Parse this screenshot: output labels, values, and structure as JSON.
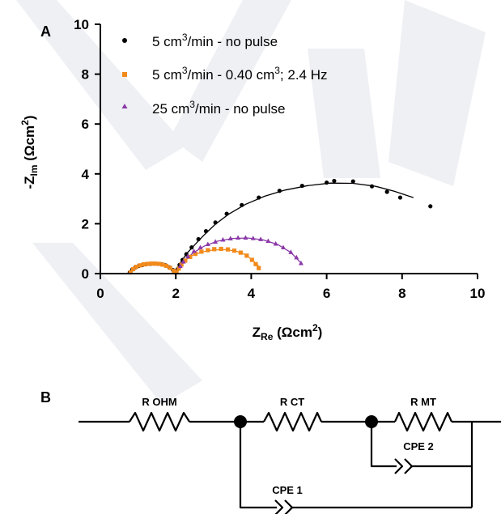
{
  "panels": {
    "a_label": "A",
    "b_label": "B"
  },
  "chart_data": {
    "type": "scatter",
    "xlabel": {
      "main": "Z",
      "sub": "Re",
      "unit": " (Ωcm",
      "sup": "2",
      "close": ")"
    },
    "ylabel": {
      "main": "-Z",
      "sub": "Im",
      "unit": " (Ωcm",
      "sup": "2",
      "close": ")"
    },
    "xlim": [
      0,
      10
    ],
    "ylim": [
      0,
      10
    ],
    "xticks": [
      "0",
      "2",
      "4",
      "6",
      "8",
      "10"
    ],
    "yticks": [
      "0",
      "2",
      "4",
      "6",
      "8",
      "10"
    ],
    "grid": false,
    "legend_position": "top-left",
    "series": [
      {
        "name": {
          "pre": "5 cm",
          "sup": "3",
          "post": "/min - no pulse"
        },
        "marker": "circle",
        "color": "#000000",
        "points": [
          [
            0.78,
            0.05
          ],
          [
            0.85,
            0.17
          ],
          [
            0.93,
            0.25
          ],
          [
            1.02,
            0.31
          ],
          [
            1.12,
            0.35
          ],
          [
            1.22,
            0.38
          ],
          [
            1.33,
            0.39
          ],
          [
            1.43,
            0.4
          ],
          [
            1.53,
            0.39
          ],
          [
            1.63,
            0.37
          ],
          [
            1.73,
            0.33
          ],
          [
            1.83,
            0.25
          ],
          [
            1.93,
            0.14
          ],
          [
            2.0,
            0.04
          ],
          [
            2.05,
            0.18
          ],
          [
            2.1,
            0.35
          ],
          [
            2.18,
            0.55
          ],
          [
            2.28,
            0.78
          ],
          [
            2.42,
            1.05
          ],
          [
            2.6,
            1.38
          ],
          [
            2.8,
            1.7
          ],
          [
            3.05,
            2.05
          ],
          [
            3.35,
            2.4
          ],
          [
            3.75,
            2.75
          ],
          [
            4.2,
            3.05
          ],
          [
            4.75,
            3.32
          ],
          [
            5.35,
            3.52
          ],
          [
            6.0,
            3.65
          ],
          [
            6.2,
            3.72
          ],
          [
            6.7,
            3.7
          ],
          [
            7.2,
            3.5
          ],
          [
            7.6,
            3.28
          ],
          [
            7.95,
            3.05
          ],
          [
            8.75,
            2.7
          ]
        ]
      },
      {
        "name": {
          "pre": "5 cm",
          "sup": "3",
          "post": "/min - 0.40 cm",
          "sup2": "3",
          "post2": "; 2.4 Hz"
        },
        "marker": "square",
        "color": "#f28a1b",
        "points": [
          [
            0.8,
            0.05
          ],
          [
            0.87,
            0.18
          ],
          [
            0.95,
            0.27
          ],
          [
            1.05,
            0.33
          ],
          [
            1.15,
            0.37
          ],
          [
            1.25,
            0.39
          ],
          [
            1.35,
            0.4
          ],
          [
            1.45,
            0.4
          ],
          [
            1.55,
            0.39
          ],
          [
            1.65,
            0.36
          ],
          [
            1.75,
            0.31
          ],
          [
            1.85,
            0.23
          ],
          [
            1.95,
            0.11
          ],
          [
            2.02,
            0.05
          ],
          [
            2.08,
            0.2
          ],
          [
            2.15,
            0.36
          ],
          [
            2.25,
            0.52
          ],
          [
            2.38,
            0.67
          ],
          [
            2.52,
            0.79
          ],
          [
            2.68,
            0.88
          ],
          [
            2.85,
            0.94
          ],
          [
            3.02,
            0.98
          ],
          [
            3.2,
            0.99
          ],
          [
            3.38,
            0.97
          ],
          [
            3.55,
            0.92
          ],
          [
            3.72,
            0.84
          ],
          [
            3.88,
            0.72
          ],
          [
            4.02,
            0.55
          ],
          [
            4.12,
            0.38
          ],
          [
            4.2,
            0.22
          ]
        ]
      },
      {
        "name": {
          "pre": "25 cm",
          "sup": "3",
          "post": "/min - no pulse"
        },
        "marker": "triangle",
        "color": "#8b3aa8",
        "points": [
          [
            2.12,
            0.3
          ],
          [
            2.2,
            0.48
          ],
          [
            2.32,
            0.7
          ],
          [
            2.48,
            0.9
          ],
          [
            2.65,
            1.05
          ],
          [
            2.85,
            1.18
          ],
          [
            3.05,
            1.28
          ],
          [
            3.25,
            1.36
          ],
          [
            3.45,
            1.41
          ],
          [
            3.65,
            1.44
          ],
          [
            3.85,
            1.44
          ],
          [
            4.05,
            1.42
          ],
          [
            4.25,
            1.38
          ],
          [
            4.45,
            1.31
          ],
          [
            4.65,
            1.2
          ],
          [
            4.85,
            1.05
          ],
          [
            5.05,
            0.86
          ],
          [
            5.2,
            0.65
          ],
          [
            5.32,
            0.42
          ]
        ]
      }
    ],
    "fits": [
      {
        "color": "#000000",
        "points": [
          [
            0.75,
            0.0
          ],
          [
            0.8,
            0.13
          ],
          [
            0.9,
            0.24
          ],
          [
            1.0,
            0.31
          ],
          [
            1.1,
            0.35
          ],
          [
            1.2,
            0.38
          ],
          [
            1.35,
            0.4
          ],
          [
            1.5,
            0.4
          ],
          [
            1.65,
            0.36
          ],
          [
            1.8,
            0.27
          ],
          [
            1.92,
            0.14
          ],
          [
            2.0,
            0.0
          ],
          [
            2.05,
            0.25
          ],
          [
            2.15,
            0.5
          ],
          [
            2.3,
            0.82
          ],
          [
            2.5,
            1.15
          ],
          [
            2.75,
            1.55
          ],
          [
            3.05,
            1.98
          ],
          [
            3.4,
            2.38
          ],
          [
            3.85,
            2.78
          ],
          [
            4.35,
            3.1
          ],
          [
            4.9,
            3.35
          ],
          [
            5.5,
            3.53
          ],
          [
            6.1,
            3.63
          ],
          [
            6.7,
            3.62
          ],
          [
            7.3,
            3.5
          ],
          [
            7.8,
            3.3
          ],
          [
            8.3,
            3.05
          ]
        ]
      },
      {
        "color": "#f28a1b",
        "points": [
          [
            2.0,
            0.0
          ],
          [
            2.1,
            0.32
          ],
          [
            2.25,
            0.55
          ],
          [
            2.45,
            0.74
          ],
          [
            2.7,
            0.87
          ],
          [
            3.0,
            0.95
          ],
          [
            3.3,
            0.96
          ],
          [
            3.6,
            0.9
          ],
          [
            3.85,
            0.76
          ],
          [
            4.05,
            0.52
          ],
          [
            4.2,
            0.3
          ]
        ]
      },
      {
        "color": "#8b3aa8",
        "points": [
          [
            2.05,
            0.1
          ],
          [
            2.2,
            0.45
          ],
          [
            2.45,
            0.82
          ],
          [
            2.75,
            1.1
          ],
          [
            3.1,
            1.3
          ],
          [
            3.5,
            1.41
          ],
          [
            3.9,
            1.43
          ],
          [
            4.3,
            1.36
          ],
          [
            4.7,
            1.17
          ],
          [
            5.05,
            0.85
          ],
          [
            5.3,
            0.45
          ]
        ]
      }
    ]
  },
  "circuit": {
    "r_ohm": "R OHM",
    "r_ct": "R CT",
    "r_mt": "R MT",
    "cpe2": "CPE 2",
    "cpe1": "CPE 1"
  }
}
